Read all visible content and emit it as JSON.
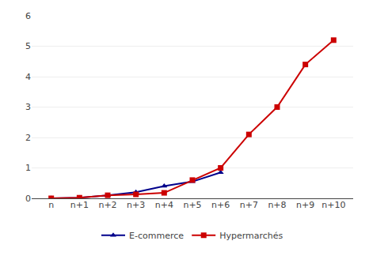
{
  "chart_data": {
    "type": "line",
    "categories": [
      "n",
      "n+1",
      "n+2",
      "n+3",
      "n+4",
      "n+5",
      "n+6",
      "n+7",
      "n+8",
      "n+9",
      "n+10"
    ],
    "series": [
      {
        "name": "E-commerce",
        "color": "#00008B",
        "marker": "triangle",
        "values": [
          0.0,
          0.02,
          0.1,
          0.2,
          0.4,
          0.55,
          0.85,
          null,
          null,
          null,
          null
        ]
      },
      {
        "name": "Hypermarchés",
        "color": "#CC0000",
        "marker": "square",
        "values": [
          0.0,
          0.02,
          0.1,
          0.13,
          0.18,
          0.6,
          1.0,
          2.1,
          3.0,
          4.4,
          5.2
        ]
      }
    ],
    "ylim": [
      0,
      6
    ],
    "yticks": [
      0,
      1,
      2,
      3,
      4,
      5,
      6
    ],
    "grid": true,
    "legend": "bottom"
  }
}
